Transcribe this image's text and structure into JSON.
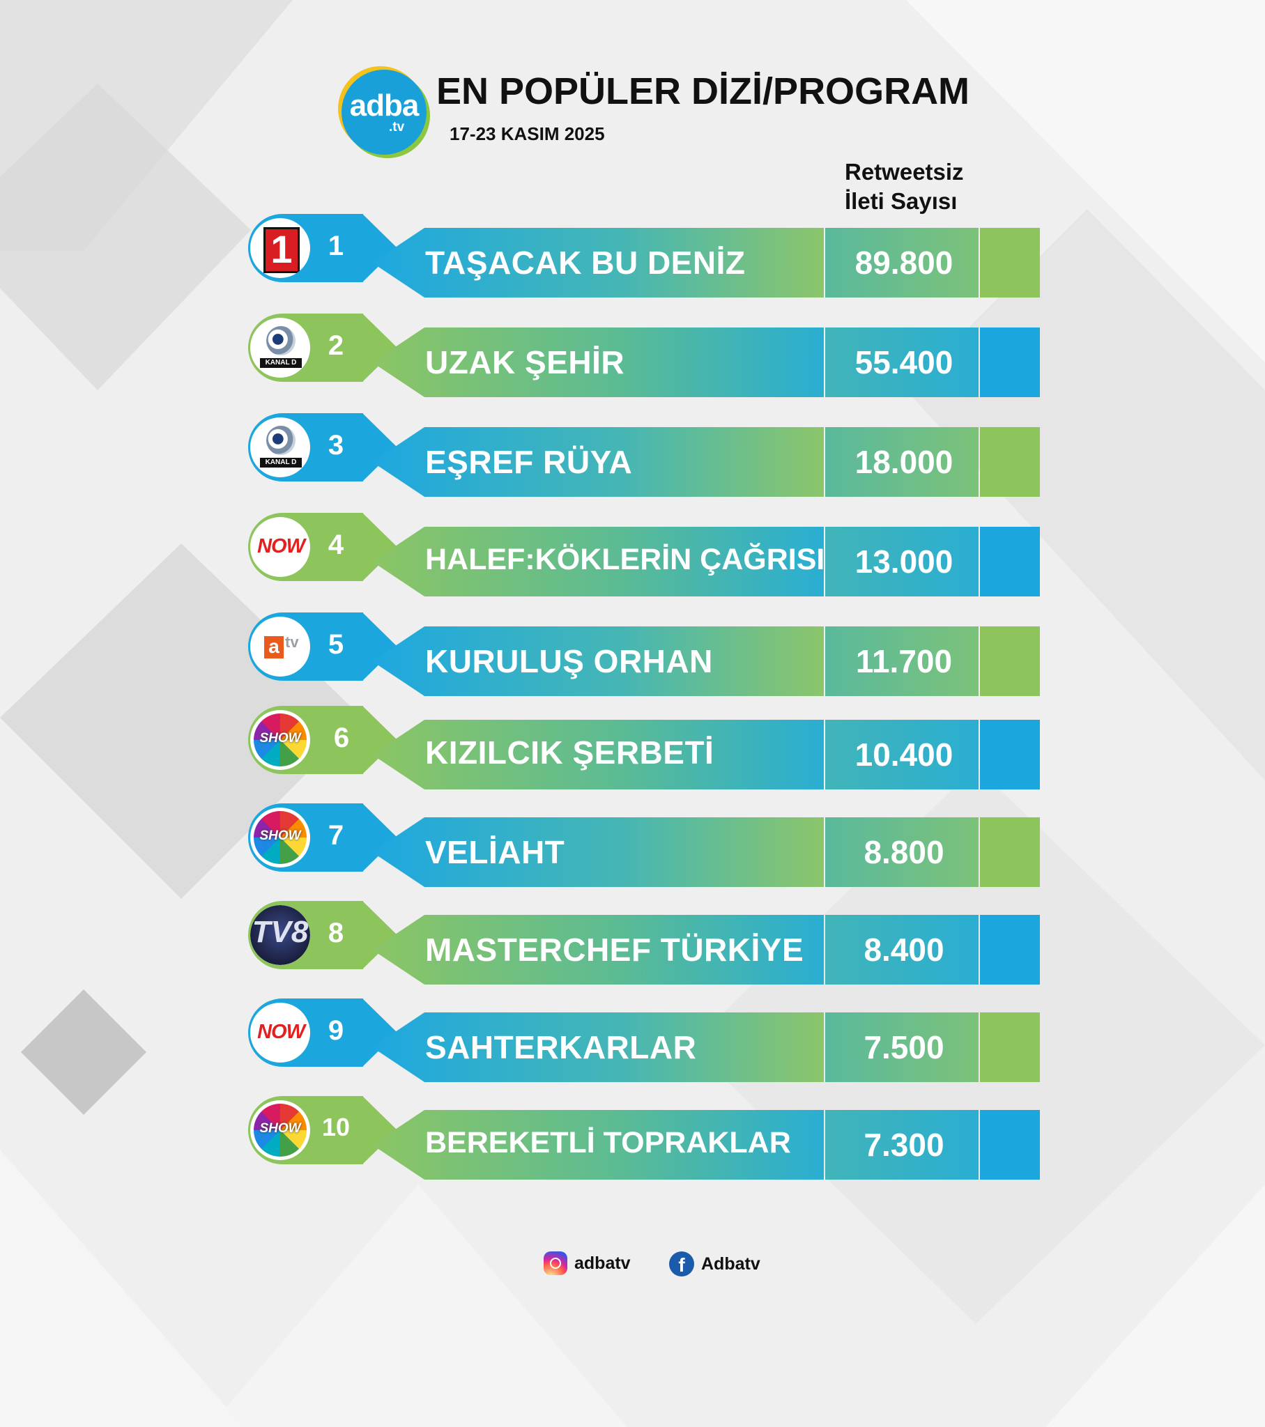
{
  "brand": {
    "logo_main": "adba",
    "logo_sub": ".tv"
  },
  "header": {
    "title": "EN POPÜLER DİZİ/PROGRAM",
    "date": "17-23 KASIM 2025",
    "column_heading_line1": "Retweetsiz",
    "column_heading_line2": "İleti Sayısı"
  },
  "rows": [
    {
      "rank": "1",
      "name": "TAŞACAK BU DENİZ",
      "count": "89.800",
      "channel_icon": "trt1-logo-icon",
      "color": "#1ba6dd"
    },
    {
      "rank": "2",
      "name": "UZAK ŞEHİR",
      "count": "55.400",
      "channel_icon": "kanal-d-logo-icon",
      "color": "#8dc45b"
    },
    {
      "rank": "3",
      "name": "EŞREF RÜYA",
      "count": "18.000",
      "channel_icon": "kanal-d-logo-icon",
      "color": "#1ba6dd"
    },
    {
      "rank": "4",
      "name": "HALEF:KÖKLERİN ÇAĞRISI",
      "count": "13.000",
      "channel_icon": "now-logo-icon",
      "color": "#8dc45b"
    },
    {
      "rank": "5",
      "name": "KURULUŞ ORHAN",
      "count": "11.700",
      "channel_icon": "atv-logo-icon",
      "color": "#1ba6dd"
    },
    {
      "rank": "6",
      "name": "KIZILCIK ŞERBETİ",
      "count": "10.400",
      "channel_icon": "show-tv-logo-icon",
      "color": "#8dc45b"
    },
    {
      "rank": "7",
      "name": "VELİAHT",
      "count": "8.800",
      "channel_icon": "show-tv-logo-icon",
      "color": "#1ba6dd"
    },
    {
      "rank": "8",
      "name": "MASTERCHEF TÜRKİYE",
      "count": "8.400",
      "channel_icon": "tv8-logo-icon",
      "color": "#8dc45b"
    },
    {
      "rank": "9",
      "name": "SAHTERKARLAR",
      "count": "7.500",
      "channel_icon": "now-logo-icon",
      "color": "#1ba6dd"
    },
    {
      "rank": "10",
      "name": "BEREKETLİ TOPRAKLAR",
      "count": "7.300",
      "channel_icon": "show-tv-logo-icon",
      "color": "#8dc45b"
    }
  ],
  "channel_logos": {
    "trt1": "1",
    "kanal_d": "KANAL D",
    "now": "NOW",
    "atv_box": "a",
    "atv_tv": "tv",
    "show": "SHOW",
    "tv8": "TV8"
  },
  "footer": {
    "instagram_icon": "instagram-icon",
    "instagram_handle": "adbatv",
    "facebook_icon": "facebook-icon",
    "facebook_handle": "Adbatv"
  }
}
